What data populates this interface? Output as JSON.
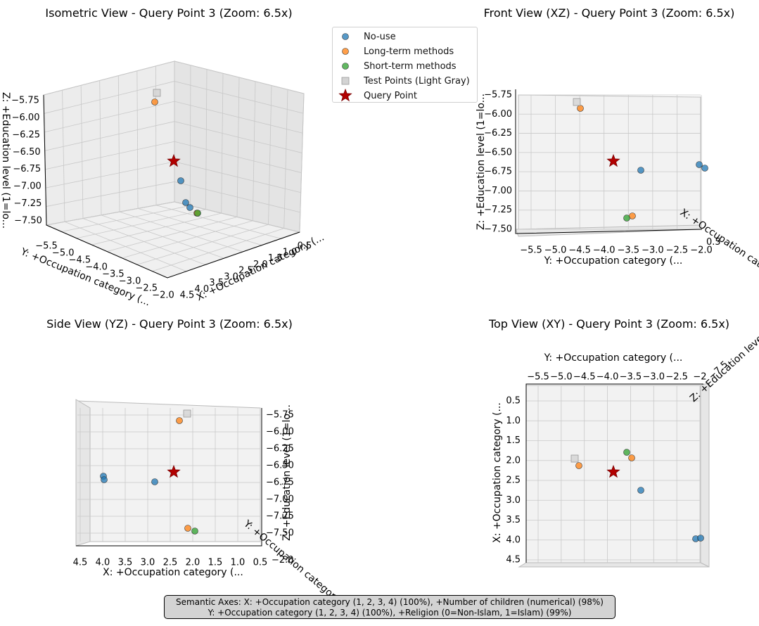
{
  "chart_data": [
    {
      "type": "scatter",
      "view": "isometric",
      "title": "Isometric View - Query Point 3 (Zoom: 6.5x)",
      "xlabel": "X: +Occupation category (...",
      "ylabel": "Y: +Occupation category (...",
      "zlabel": "Z: +Education level (1=lo...",
      "x_ticks": [
        "4.5",
        "4.0",
        "3.5",
        "3.0",
        "2.5",
        "2.0",
        "1.5",
        "1.0",
        "0.5"
      ],
      "y_ticks": [
        "−5.5",
        "−5.0",
        "−4.5",
        "−4.0",
        "−3.5",
        "−3.0",
        "−2.5",
        "−2.0"
      ],
      "z_ticks": [
        "−5.75",
        "−6.00",
        "−6.25",
        "−6.50",
        "−6.75",
        "−7.00",
        "−7.25",
        "−7.50"
      ]
    },
    {
      "type": "scatter",
      "view": "front-xz",
      "title": "Front View (XZ) - Query Point 3 (Zoom: 6.5x)",
      "xlabel": "Y: +Occupation category (...",
      "ylabel": "Z: +Education level (1=lo...",
      "side_label": "X: +Occupation cate",
      "x_ticks": [
        "−5.5",
        "−5.0",
        "−4.5",
        "−4.0",
        "−3.5",
        "−3.0",
        "−2.5",
        "−2.0"
      ],
      "y_ticks": [
        "−5.75",
        "−6.00",
        "−6.25",
        "−6.50",
        "−6.75",
        "−7.00",
        "−7.25",
        "−7.50"
      ],
      "side_ticks": "0.5"
    },
    {
      "type": "scatter",
      "view": "side-yz",
      "title": "Side View (YZ) - Query Point 3 (Zoom: 6.5x)",
      "xlabel": "X: +Occupation category (...",
      "ylabel": "Z: +Education level (1=lo...",
      "side_label": "Y: +Occupation categor",
      "x_ticks": [
        "4.5",
        "4.0",
        "3.5",
        "3.0",
        "2.5",
        "2.0",
        "1.5",
        "1.0",
        "0.5"
      ],
      "y_ticks": [
        "−5.75",
        "−6.00",
        "−6.25",
        "−6.50",
        "−6.75",
        "−7.00",
        "−7.25",
        "−7.50"
      ],
      "side_ticks": "−2.0"
    },
    {
      "type": "scatter",
      "view": "top-xy",
      "title": "Top View (XY) - Query Point 3 (Zoom: 6.5x)",
      "xlabel": "Y: +Occupation category (...",
      "ylabel": "X: +Occupation category (...",
      "side_label": "Z: +Education level (",
      "x_ticks": [
        "−5.5",
        "−5.0",
        "−4.5",
        "−4.0",
        "−3.5",
        "−3.0",
        "−2.5",
        "−2"
      ],
      "y_ticks": [
        "0.5",
        "1.0",
        "1.5",
        "2.0",
        "2.5",
        "3.0",
        "3.5",
        "4.0",
        "4.5"
      ],
      "side_ticks": "−7.5"
    }
  ],
  "points": {
    "no_use": [
      {
        "x": 2.8,
        "y": -3.3,
        "z": -6.75
      },
      {
        "x": 4.0,
        "y": -2.4,
        "z": -6.7
      },
      {
        "x": 4.0,
        "y": -2.3,
        "z": -6.72
      }
    ],
    "long_term": [
      {
        "x": 2.2,
        "y": -4.6,
        "z": -5.93
      },
      {
        "x": 2.1,
        "y": -3.6,
        "z": -7.48
      }
    ],
    "short_term": [
      {
        "x": 1.9,
        "y": -3.7,
        "z": -7.52
      }
    ],
    "test": [
      {
        "x": 2.1,
        "y": -4.7,
        "z": -5.85
      }
    ],
    "query": [
      {
        "x": 2.5,
        "y": -3.9,
        "z": -6.57
      }
    ]
  },
  "legend": {
    "items": [
      {
        "label": "No-use",
        "color": "#1f77b4",
        "shape": "circle"
      },
      {
        "label": "Long-term methods",
        "color": "#ff7f0e",
        "shape": "circle"
      },
      {
        "label": "Short-term methods",
        "color": "#2ca02c",
        "shape": "circle"
      },
      {
        "label": "Test Points (Light Gray)",
        "color": "#d3d3d3",
        "shape": "square"
      },
      {
        "label": "Query Point",
        "color": "#b20000",
        "shape": "star"
      }
    ]
  },
  "caption": {
    "line1": "Semantic Axes: X: +Occupation category (1, 2, 3, 4) (100%), +Number of children (numerical) (98%)",
    "line2": "Y: +Occupation category (1, 2, 3, 4) (100%), +Religion (0=Non-Islam, 1=Islam) (99%)"
  }
}
